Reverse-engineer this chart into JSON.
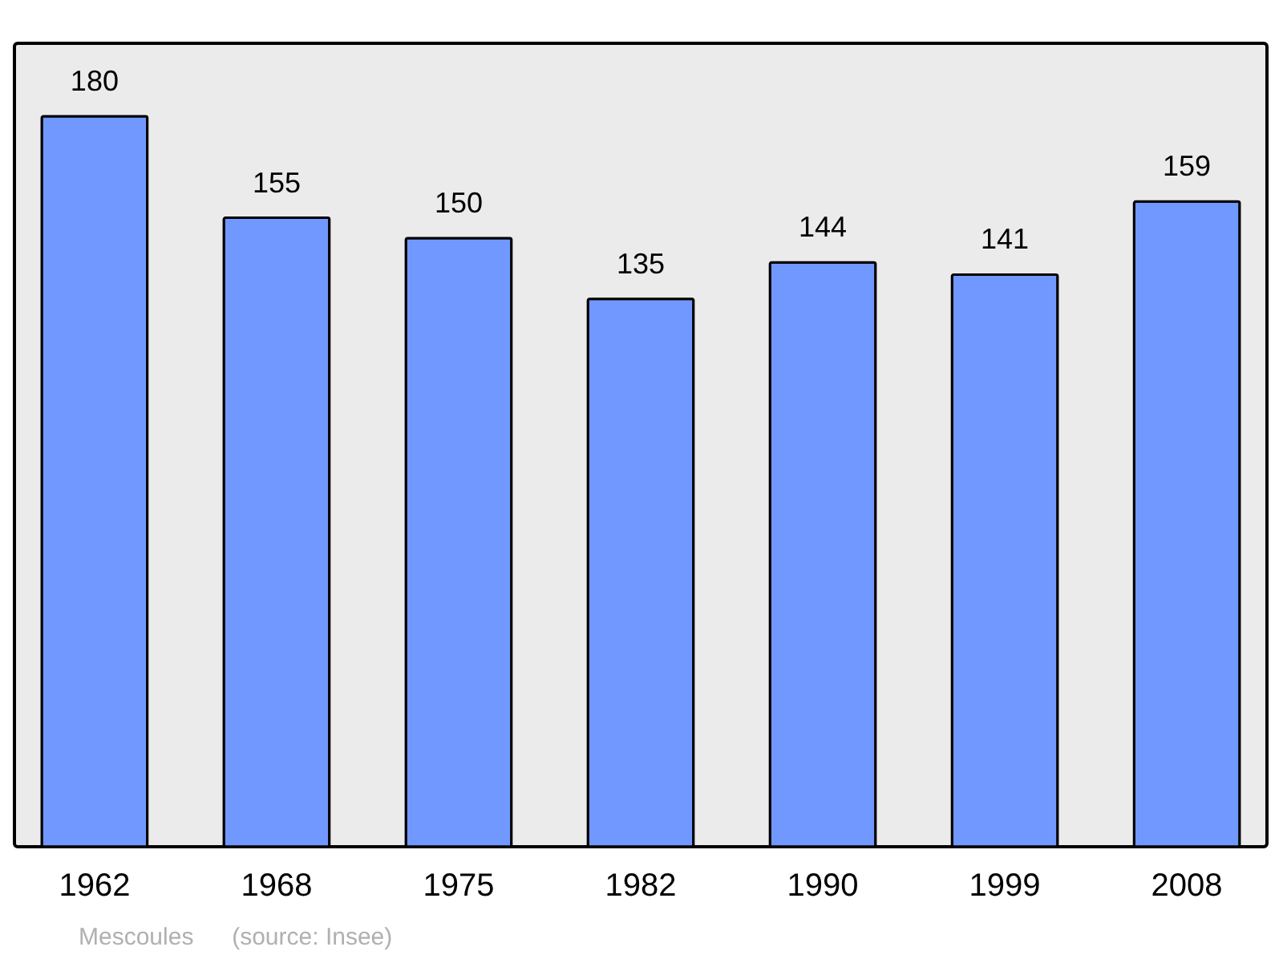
{
  "chart_data": {
    "type": "bar",
    "categories": [
      "1962",
      "1968",
      "1975",
      "1982",
      "1990",
      "1999",
      "2008"
    ],
    "values": [
      180,
      155,
      150,
      135,
      144,
      141,
      159
    ],
    "color": "#7098ff",
    "data_labels": true,
    "annotations": [
      "Mescoules",
      "(source: Insee)"
    ]
  }
}
